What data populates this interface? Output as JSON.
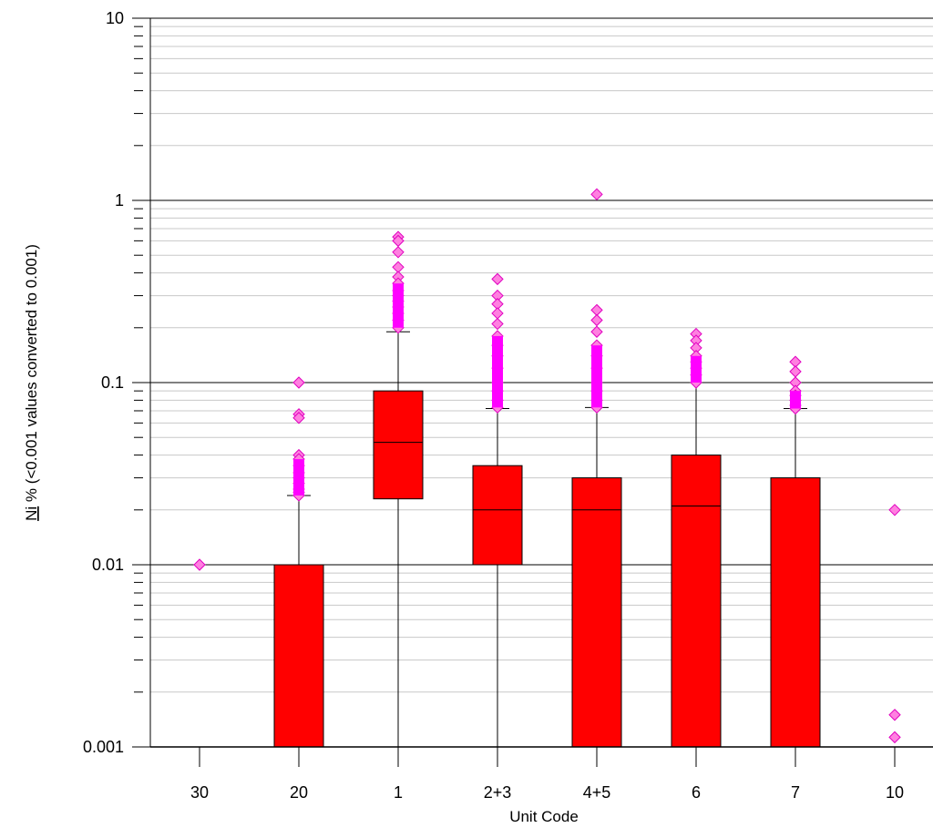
{
  "chart_data": {
    "type": "boxplot",
    "title": "",
    "xlabel": "Unit Code",
    "ylabel_prefix": "Ni",
    "ylabel_suffix": " % (<0.001 values converted to 0.001)",
    "yscale": "log",
    "ylim": [
      0.001,
      10
    ],
    "ytick_labels": [
      "10",
      "1",
      "0.1",
      "0.01",
      "0.001"
    ],
    "yticks": [
      10,
      1,
      0.1,
      0.01,
      0.001
    ],
    "grid": true,
    "colors": {
      "box": "#ff0000",
      "outlier_fill": "#ff80e0",
      "outlier_edge": "#e000c0",
      "dense_outliers": "#ff00ff",
      "major_grid": "#000000",
      "minor_grid": "#c8c8c8"
    },
    "categories": [
      "30",
      "20",
      "1",
      "2+3",
      "4+5",
      "6",
      "7",
      "10"
    ],
    "boxes": [
      {
        "category": "30",
        "q1": null,
        "median": null,
        "q3": null,
        "whisker_low": 0.001,
        "whisker_high": null,
        "outliers": [
          0.01
        ]
      },
      {
        "category": "20",
        "q1": 0.001,
        "median": 0.001,
        "q3": 0.01,
        "whisker_low": 0.001,
        "whisker_high": 0.024,
        "outliers": [
          0.1,
          0.067,
          0.064,
          0.04,
          0.038,
          0.035,
          0.032,
          0.03,
          0.028,
          0.026,
          0.025,
          0.024
        ]
      },
      {
        "category": "1",
        "q1": 0.023,
        "median": 0.047,
        "q3": 0.09,
        "whisker_low": 0.001,
        "whisker_high": 0.19,
        "outliers": [
          0.63,
          0.6,
          0.52,
          0.43,
          0.38,
          0.35,
          0.32,
          0.3,
          0.28,
          0.26,
          0.24,
          0.22,
          0.2
        ]
      },
      {
        "category": "2+3",
        "q1": 0.01,
        "median": 0.02,
        "q3": 0.035,
        "whisker_low": 0.001,
        "whisker_high": 0.072,
        "outliers": [
          0.37,
          0.3,
          0.27,
          0.24,
          0.21,
          0.18,
          0.16,
          0.14,
          0.12,
          0.1,
          0.09,
          0.08,
          0.073
        ]
      },
      {
        "category": "4+5",
        "q1": 0.001,
        "median": 0.02,
        "q3": 0.03,
        "whisker_low": 0.001,
        "whisker_high": 0.073,
        "outliers": [
          1.08,
          0.25,
          0.22,
          0.19,
          0.16,
          0.14,
          0.12,
          0.1,
          0.09,
          0.08,
          0.073
        ]
      },
      {
        "category": "6",
        "q1": 0.001,
        "median": 0.021,
        "q3": 0.04,
        "whisker_low": 0.001,
        "whisker_high": 0.1,
        "outliers": [
          0.185,
          0.17,
          0.155,
          0.14,
          0.13,
          0.12,
          0.11,
          0.1
        ]
      },
      {
        "category": "7",
        "q1": 0.001,
        "median": 0.001,
        "q3": 0.03,
        "whisker_low": 0.001,
        "whisker_high": 0.072,
        "outliers": [
          0.13,
          0.115,
          0.1,
          0.09,
          0.085,
          0.08,
          0.075,
          0.072
        ]
      },
      {
        "category": "10",
        "q1": null,
        "median": null,
        "q3": null,
        "whisker_low": 0.001,
        "whisker_high": null,
        "outliers": [
          0.02,
          0.0015,
          0.00113
        ]
      }
    ]
  }
}
